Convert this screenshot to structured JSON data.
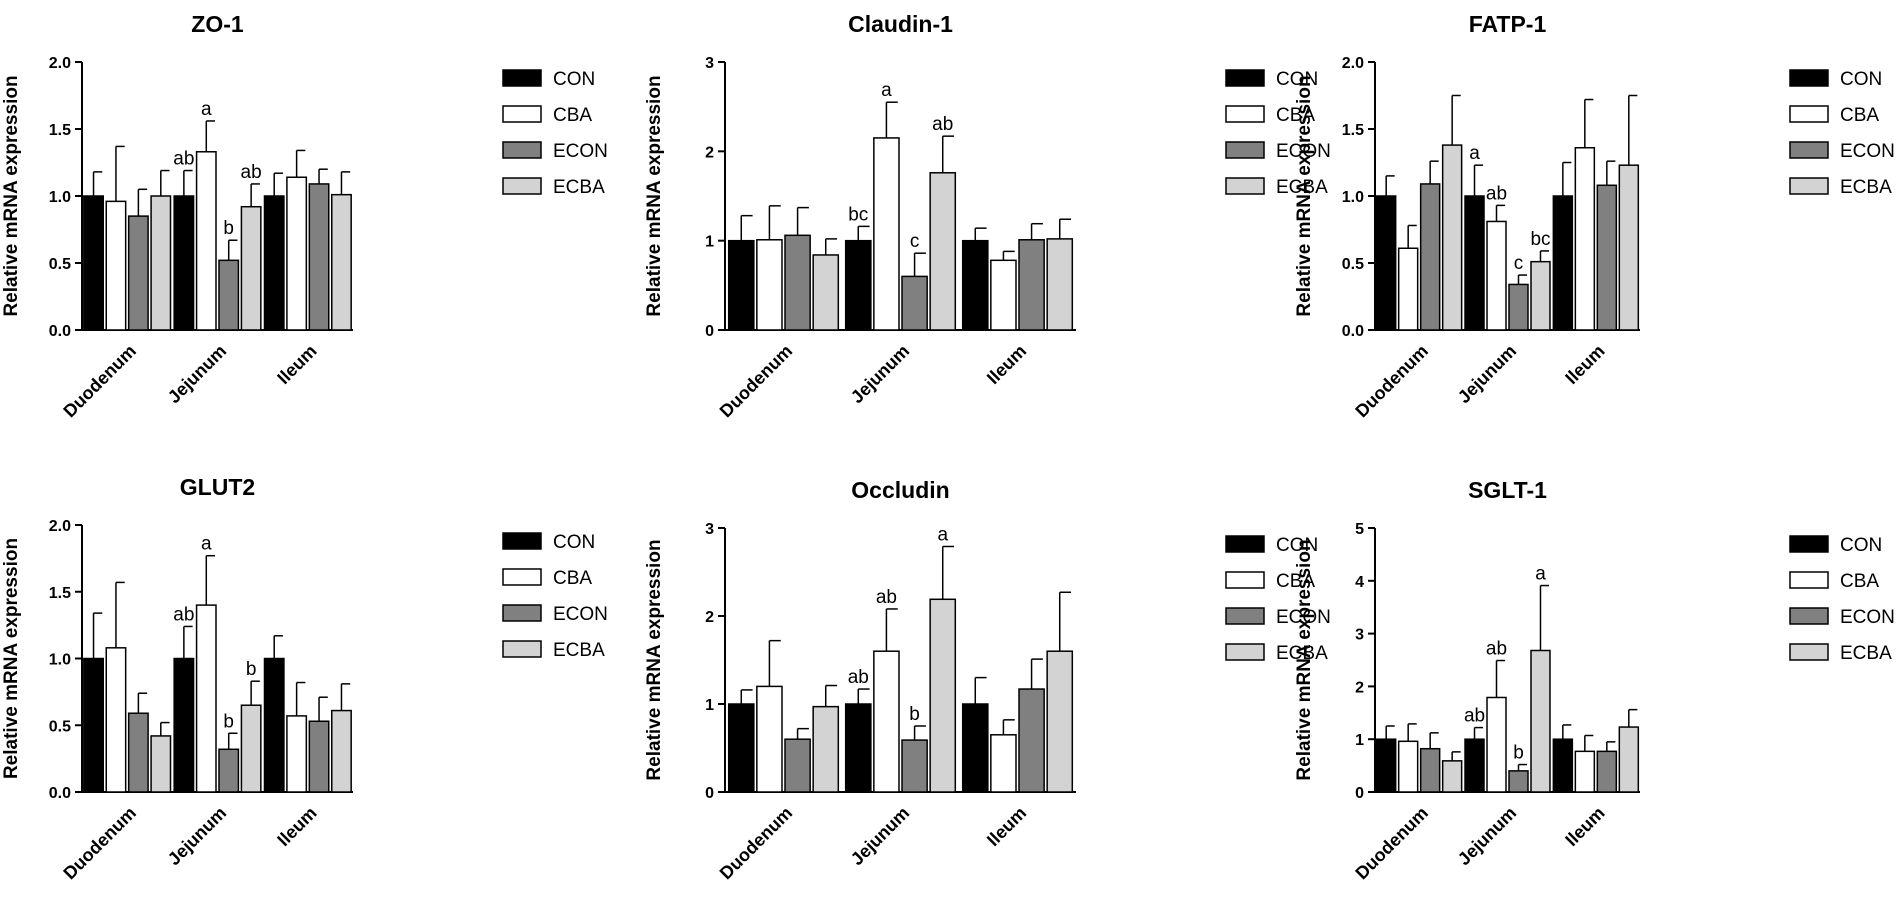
{
  "colors": {
    "CON": "#000000",
    "CBA": "#ffffff",
    "ECON": "#808080",
    "ECBA": "#d3d3d3"
  },
  "chart_data": [
    {
      "type": "bar",
      "title": "ZO-1",
      "ylabel": "Relative mRNA expression",
      "xlabel": "",
      "categories": [
        "Duodenum",
        "Jejunum",
        "Ileum"
      ],
      "ylim": [
        0,
        2.0
      ],
      "yticks": [
        "0.0",
        "0.5",
        "1.0",
        "1.5",
        "2.0"
      ],
      "legend_position": "right",
      "series": [
        {
          "name": "CON",
          "values": [
            1.0,
            1.0,
            1.0
          ],
          "errors": [
            0.18,
            0.19,
            0.17
          ],
          "labels": [
            "",
            "ab",
            ""
          ]
        },
        {
          "name": "CBA",
          "values": [
            0.96,
            1.33,
            1.14
          ],
          "errors": [
            0.41,
            0.23,
            0.2
          ],
          "labels": [
            "",
            "a",
            ""
          ]
        },
        {
          "name": "ECON",
          "values": [
            0.85,
            0.52,
            1.09
          ],
          "errors": [
            0.2,
            0.15,
            0.11
          ],
          "labels": [
            "",
            "b",
            ""
          ]
        },
        {
          "name": "ECBA",
          "values": [
            1.0,
            0.92,
            1.01
          ],
          "errors": [
            0.19,
            0.17,
            0.17
          ],
          "labels": [
            "",
            "ab",
            ""
          ]
        }
      ]
    },
    {
      "type": "bar",
      "title": "Claudin-1",
      "ylabel": "Relative mRNA expression",
      "xlabel": "",
      "categories": [
        "Duodenum",
        "Jejunum",
        "Ileum"
      ],
      "ylim": [
        0,
        3
      ],
      "yticks": [
        "0",
        "1",
        "2",
        "3"
      ],
      "legend_position": "right",
      "series": [
        {
          "name": "CON",
          "values": [
            1.0,
            1.0,
            1.0
          ],
          "errors": [
            0.28,
            0.16,
            0.14
          ],
          "labels": [
            "",
            "bc",
            ""
          ]
        },
        {
          "name": "CBA",
          "values": [
            1.01,
            2.15,
            0.78
          ],
          "errors": [
            0.38,
            0.4,
            0.1
          ],
          "labels": [
            "",
            "a",
            ""
          ]
        },
        {
          "name": "ECON",
          "values": [
            1.06,
            0.6,
            1.01
          ],
          "errors": [
            0.31,
            0.26,
            0.18
          ],
          "labels": [
            "",
            "c",
            ""
          ]
        },
        {
          "name": "ECBA",
          "values": [
            0.84,
            1.76,
            1.02
          ],
          "errors": [
            0.18,
            0.41,
            0.22
          ],
          "labels": [
            "",
            "ab",
            ""
          ]
        }
      ]
    },
    {
      "type": "bar",
      "title": "FATP-1",
      "ylabel": "Relative mRNA expression",
      "xlabel": "",
      "categories": [
        "Duodenum",
        "Jejunum",
        "Ileum"
      ],
      "ylim": [
        0,
        2.0
      ],
      "yticks": [
        "0.0",
        "0.5",
        "1.0",
        "1.5",
        "2.0"
      ],
      "legend_position": "right",
      "series": [
        {
          "name": "CON",
          "values": [
            1.0,
            1.0,
            1.0
          ],
          "errors": [
            0.15,
            0.23,
            0.25
          ],
          "labels": [
            "",
            "a",
            ""
          ]
        },
        {
          "name": "CBA",
          "values": [
            0.61,
            0.81,
            1.36
          ],
          "errors": [
            0.17,
            0.12,
            0.36
          ],
          "labels": [
            "",
            "ab",
            ""
          ]
        },
        {
          "name": "ECON",
          "values": [
            1.09,
            0.34,
            1.08
          ],
          "errors": [
            0.17,
            0.07,
            0.18
          ],
          "labels": [
            "",
            "c",
            ""
          ]
        },
        {
          "name": "ECBA",
          "values": [
            1.38,
            0.51,
            1.23
          ],
          "errors": [
            0.37,
            0.08,
            0.52
          ],
          "labels": [
            "",
            "bc",
            ""
          ]
        }
      ]
    },
    {
      "type": "bar",
      "title": "GLUT2",
      "ylabel": "Relative mRNA expression",
      "xlabel": "",
      "categories": [
        "Duodenum",
        "Jejunum",
        "Ileum"
      ],
      "ylim": [
        0,
        2.0
      ],
      "yticks": [
        "0.0",
        "0.5",
        "1.0",
        "1.5",
        "2.0"
      ],
      "legend_position": "right",
      "series": [
        {
          "name": "CON",
          "values": [
            1.0,
            1.0,
            1.0
          ],
          "errors": [
            0.34,
            0.24,
            0.17
          ],
          "labels": [
            "",
            "ab",
            ""
          ]
        },
        {
          "name": "CBA",
          "values": [
            1.08,
            1.4,
            0.57
          ],
          "errors": [
            0.49,
            0.37,
            0.25
          ],
          "labels": [
            "",
            "a",
            ""
          ]
        },
        {
          "name": "ECON",
          "values": [
            0.59,
            0.32,
            0.53
          ],
          "errors": [
            0.15,
            0.12,
            0.18
          ],
          "labels": [
            "",
            "b",
            ""
          ]
        },
        {
          "name": "ECBA",
          "values": [
            0.42,
            0.65,
            0.61
          ],
          "errors": [
            0.1,
            0.18,
            0.2
          ],
          "labels": [
            "",
            "b",
            ""
          ]
        }
      ]
    },
    {
      "type": "bar",
      "title": "Occludin",
      "ylabel": "Relative mRNA expression",
      "xlabel": "",
      "categories": [
        "Duodenum",
        "Jejunum",
        "Ileum"
      ],
      "ylim": [
        0,
        3
      ],
      "yticks": [
        "0",
        "1",
        "2",
        "3"
      ],
      "legend_position": "right",
      "series": [
        {
          "name": "CON",
          "values": [
            1.0,
            1.0,
            1.0
          ],
          "errors": [
            0.16,
            0.17,
            0.3
          ],
          "labels": [
            "",
            "ab",
            ""
          ]
        },
        {
          "name": "CBA",
          "values": [
            1.2,
            1.6,
            0.65
          ],
          "errors": [
            0.52,
            0.48,
            0.17
          ],
          "labels": [
            "",
            "ab",
            ""
          ]
        },
        {
          "name": "ECON",
          "values": [
            0.6,
            0.59,
            1.17
          ],
          "errors": [
            0.12,
            0.16,
            0.34
          ],
          "labels": [
            "",
            "b",
            ""
          ]
        },
        {
          "name": "ECBA",
          "values": [
            0.97,
            2.19,
            1.6
          ],
          "errors": [
            0.24,
            0.6,
            0.67
          ],
          "labels": [
            "",
            "a",
            ""
          ]
        }
      ]
    },
    {
      "type": "bar",
      "title": "SGLT-1",
      "ylabel": "Relative mRNA expression",
      "xlabel": "",
      "categories": [
        "Duodenum",
        "Jejunum",
        "Ileum"
      ],
      "ylim": [
        0,
        5
      ],
      "yticks": [
        "0",
        "1",
        "2",
        "3",
        "4",
        "5"
      ],
      "legend_position": "right",
      "series": [
        {
          "name": "CON",
          "values": [
            1.0,
            1.0,
            1.0
          ],
          "errors": [
            0.25,
            0.22,
            0.27
          ],
          "labels": [
            "",
            "ab",
            ""
          ]
        },
        {
          "name": "CBA",
          "values": [
            0.96,
            1.79,
            0.77
          ],
          "errors": [
            0.33,
            0.7,
            0.3
          ],
          "labels": [
            "",
            "ab",
            ""
          ]
        },
        {
          "name": "ECON",
          "values": [
            0.82,
            0.4,
            0.77
          ],
          "errors": [
            0.3,
            0.12,
            0.18
          ],
          "labels": [
            "",
            "b",
            ""
          ]
        },
        {
          "name": "ECBA",
          "values": [
            0.59,
            2.68,
            1.23
          ],
          "errors": [
            0.17,
            1.23,
            0.33
          ],
          "labels": [
            "",
            "a",
            ""
          ]
        }
      ]
    }
  ]
}
